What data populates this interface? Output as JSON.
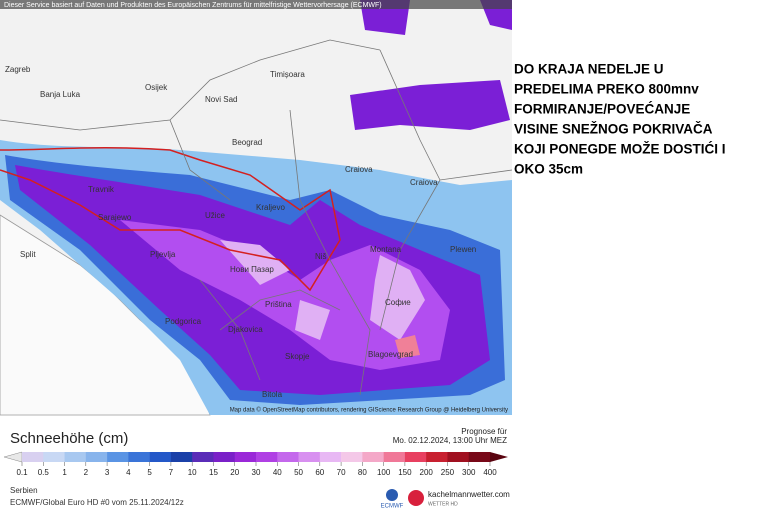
{
  "map": {
    "header": "Dieser Service basiert auf Daten und Produkten des Europäischen Zentrums für mittelfristige Wettervorhersage (ECMWF)",
    "attribution": "Map data © OpenStreetMap contributors, rendering GIScience Research Group @ Heidelberg University",
    "cities": [
      "Zagreb",
      "Osijek",
      "Novi Sad",
      "Beograd",
      "Banja Luka",
      "Travnik",
      "Sarajewo",
      "Užice",
      "Pljevlja",
      "Kraljevo",
      "Нови Пазар",
      "Niš",
      "Priština",
      "Podgorica",
      "Skopje",
      "Софие",
      "Blagoevgrad",
      "Montana",
      "Plewen",
      "Craiova",
      "Timișoara",
      "Craiova",
      "Bitola",
      "Split",
      "Djakovica"
    ]
  },
  "annotation": {
    "lines": [
      "DO KRAJA NEDELJE U",
      "PREDELIMA PREKO 800mnv",
      "FORMIRANJE/POVEĆANJE",
      "VISINE SNEŽNOG POKRIVAČA",
      "KOJI PONEGDE MOŽE DOSTIĆI I",
      "OKO 35cm"
    ]
  },
  "legend": {
    "title": "Schneehöhe (cm)",
    "labels": [
      "0.1",
      "0.5",
      "1",
      "2",
      "3",
      "4",
      "5",
      "7",
      "10",
      "15",
      "20",
      "30",
      "40",
      "50",
      "60",
      "70",
      "80",
      "100",
      "150",
      "200",
      "250",
      "300",
      "400"
    ],
    "colors": [
      "#d8d0f0",
      "#c8d8f4",
      "#a8c8f0",
      "#88b4ec",
      "#5a94e4",
      "#3a74d8",
      "#2458c8",
      "#1a40a8",
      "#5a2cb8",
      "#7a20c8",
      "#9a28d8",
      "#b040e4",
      "#c468ec",
      "#d890f0",
      "#e8b8f4",
      "#f4c8e8",
      "#f4a8c8",
      "#f07898",
      "#e84060",
      "#c82030",
      "#a01020",
      "#780818"
    ],
    "forecast_label": "Prognose für",
    "forecast_date": "Mo. 02.12.2024, 13:00 Uhr MEZ"
  },
  "footer": {
    "region": "Serbien",
    "model": "ECMWF/Global Euro HD #0 vom 25.11.2024/12z",
    "ecmwf": "ECMWF",
    "site": "kachelmannwetter.com",
    "site_sub": "WETTER HD"
  }
}
